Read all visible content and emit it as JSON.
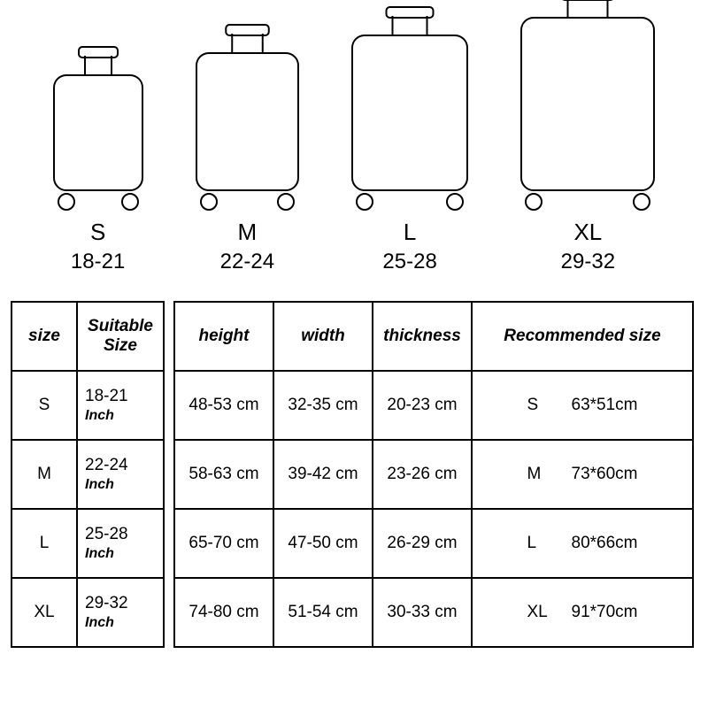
{
  "infographic": {
    "type": "infographic",
    "background_color": "#ffffff",
    "stroke_color": "#000000",
    "stroke_width": 2,
    "label_fontsize": 26,
    "range_fontsize": 24,
    "suitcases": [
      {
        "label": "S",
        "range": "18-21",
        "body_w": 100,
        "body_h": 130
      },
      {
        "label": "M",
        "range": "22-24",
        "body_w": 115,
        "body_h": 155
      },
      {
        "label": "L",
        "range": "25-28",
        "body_w": 130,
        "body_h": 175
      },
      {
        "label": "XL",
        "range": "29-32",
        "body_w": 150,
        "body_h": 195
      }
    ]
  },
  "table1": {
    "type": "table",
    "border_color": "#000000",
    "border_width": 2,
    "header_fontsize": 19,
    "cell_fontsize": 19,
    "inch_fontsize": 16,
    "columns": [
      "size",
      "Suitable Size"
    ],
    "rows": [
      {
        "size": "S",
        "suitable": "18-21",
        "unit": "Inch"
      },
      {
        "size": "M",
        "suitable": "22-24",
        "unit": "Inch"
      },
      {
        "size": "L",
        "suitable": "25-28",
        "unit": "Inch"
      },
      {
        "size": "XL",
        "suitable": "29-32",
        "unit": "Inch"
      }
    ]
  },
  "table2": {
    "type": "table",
    "border_color": "#000000",
    "border_width": 2,
    "header_fontsize": 19,
    "cell_fontsize": 19,
    "columns": [
      "height",
      "width",
      "thickness",
      "Recommended size"
    ],
    "rows": [
      {
        "height": "48-53 cm",
        "width": "32-35 cm",
        "thickness": "20-23 cm",
        "rec_code": "S",
        "rec_dim": "63*51cm"
      },
      {
        "height": "58-63 cm",
        "width": "39-42 cm",
        "thickness": "23-26 cm",
        "rec_code": "M",
        "rec_dim": "73*60cm"
      },
      {
        "height": "65-70 cm",
        "width": "47-50 cm",
        "thickness": "26-29 cm",
        "rec_code": "L",
        "rec_dim": "80*66cm"
      },
      {
        "height": "74-80 cm",
        "width": "51-54 cm",
        "thickness": "30-33 cm",
        "rec_code": "XL",
        "rec_dim": "91*70cm"
      }
    ]
  }
}
